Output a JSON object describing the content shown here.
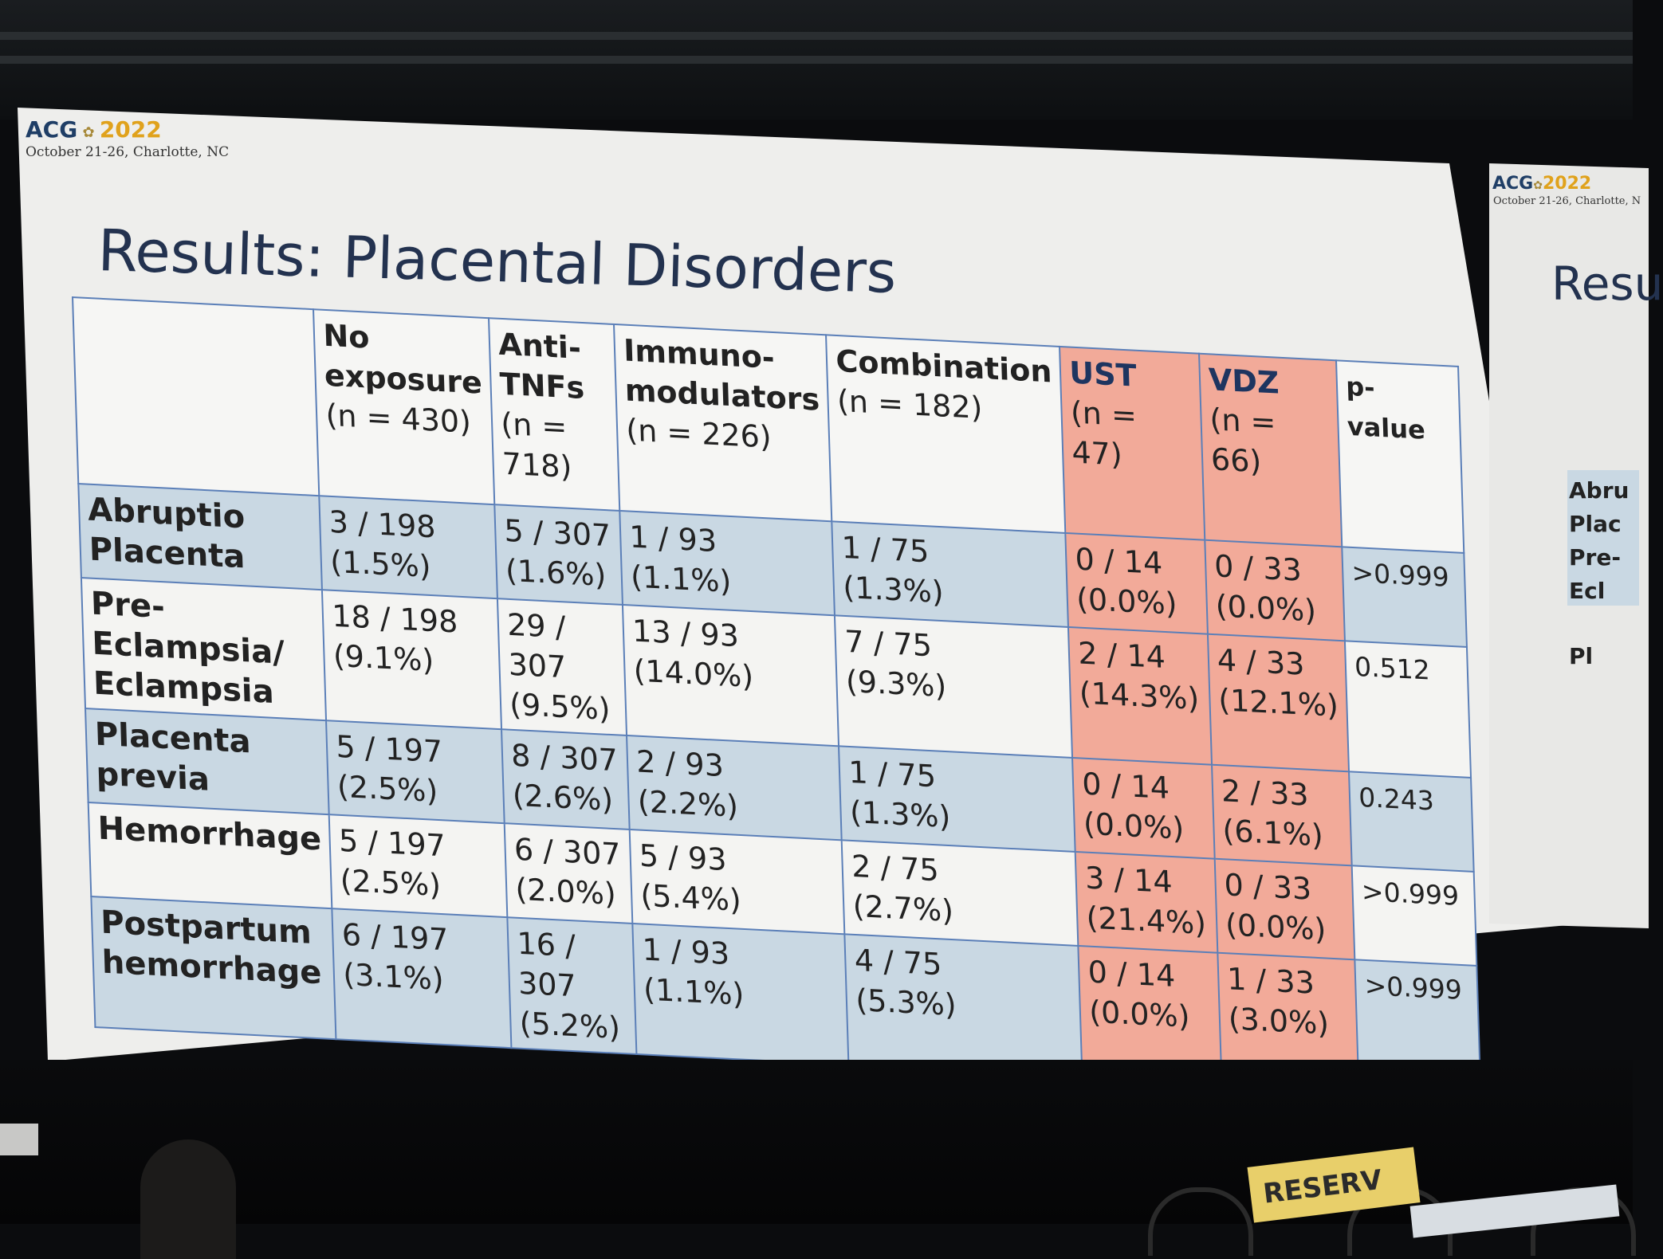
{
  "conference": {
    "logo_text": "ACG",
    "logo_year": "2022",
    "subtitle": "October 21-26, Charlotte, NC"
  },
  "slide": {
    "title": "Results: Placental Disorders"
  },
  "table": {
    "columns": [
      {
        "line1": "No",
        "line2": "exposure",
        "n": "(n = 430)"
      },
      {
        "line1": "Anti-",
        "line2": "TNFs",
        "n": "(n = 718)"
      },
      {
        "line1": "Immuno-",
        "line2": "modulators",
        "n": "(n = 226)"
      },
      {
        "line1": "Combination",
        "line2": "",
        "n": "(n = 182)"
      },
      {
        "line1": "UST",
        "line2": "",
        "n": "(n = 47)"
      },
      {
        "line1": "VDZ",
        "line2": "",
        "n": "(n = 66)"
      },
      {
        "line1": "p-value",
        "line2": "",
        "n": ""
      }
    ],
    "rows": [
      {
        "label1": "Abruptio",
        "label2": "Placenta",
        "cells": [
          [
            "3 / 198",
            "(1.5%)"
          ],
          [
            "5 / 307",
            "(1.6%)"
          ],
          [
            "1 / 93",
            "(1.1%)"
          ],
          [
            "1 / 75",
            "(1.3%)"
          ],
          [
            "0 / 14",
            "(0.0%)"
          ],
          [
            "0 / 33",
            "(0.0%)"
          ]
        ],
        "p": ">0.999"
      },
      {
        "label1": "Pre-Eclampsia/",
        "label2": "Eclampsia",
        "cells": [
          [
            "18 / 198",
            "(9.1%)"
          ],
          [
            "29 / 307",
            "(9.5%)"
          ],
          [
            "13 / 93",
            "(14.0%)"
          ],
          [
            "7 / 75",
            "(9.3%)"
          ],
          [
            "2 / 14",
            "(14.3%)"
          ],
          [
            "4 / 33",
            "(12.1%)"
          ]
        ],
        "p": "0.512"
      },
      {
        "label1": "Placenta previa",
        "label2": "",
        "cells": [
          [
            "5 / 197",
            "(2.5%)"
          ],
          [
            "8 / 307",
            "(2.6%)"
          ],
          [
            "2 / 93",
            "(2.2%)"
          ],
          [
            "1 / 75",
            "(1.3%)"
          ],
          [
            "0 / 14",
            "(0.0%)"
          ],
          [
            "2 / 33",
            "(6.1%)"
          ]
        ],
        "p": "0.243"
      },
      {
        "label1": "Hemorrhage",
        "label2": "",
        "cells": [
          [
            "5 / 197",
            "(2.5%)"
          ],
          [
            "6 / 307",
            "(2.0%)"
          ],
          [
            "5 / 93",
            "(5.4%)"
          ],
          [
            "2 / 75",
            "(2.7%)"
          ],
          [
            "3 / 14",
            "(21.4%)"
          ],
          [
            "0 / 33",
            "(0.0%)"
          ]
        ],
        "p": ">0.999"
      },
      {
        "label1": "Postpartum",
        "label2": "hemorrhage",
        "cells": [
          [
            "6 / 197",
            "(3.1%)"
          ],
          [
            "16 / 307",
            "(5.2%)"
          ],
          [
            "1 / 93",
            "(1.1%)"
          ],
          [
            "4 / 75",
            "(5.3%)"
          ],
          [
            "0 / 14",
            "(0.0%)"
          ],
          [
            "1 / 33",
            "(3.0%)"
          ]
        ],
        "p": ">0.999"
      }
    ]
  },
  "second_screen": {
    "logo_text": "ACG",
    "logo_year": "2022",
    "subtitle": "October 21-26, Charlotte, N",
    "title_fragment": "Resu",
    "row_fragments": [
      "Abru",
      "Plac",
      "Pre-",
      "Ecl",
      "Pl"
    ]
  },
  "room": {
    "reserved_sign": "RESERV"
  },
  "colors": {
    "salmon": "#f2aa99",
    "row_shade": "#c9d8e3",
    "title_navy": "#23324f",
    "grid_blue": "#5b7fb8"
  }
}
